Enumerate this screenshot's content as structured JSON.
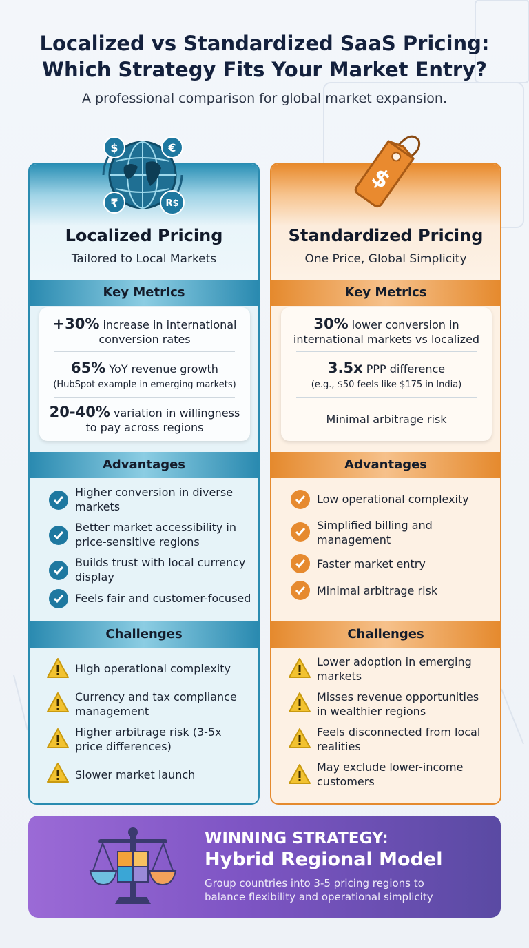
{
  "header": {
    "title_line1": "Localized vs Standardized SaaS Pricing:",
    "title_line2": "Which Strategy Fits Your Market Entry?",
    "subtitle": "A professional comparison for global market expansion."
  },
  "localized": {
    "icon": "globe-currency-icon",
    "currency_symbols": [
      "$",
      "€",
      "₹",
      "R$"
    ],
    "title": "Localized Pricing",
    "subtitle": "Tailored to Local Markets",
    "metrics_heading": "Key Metrics",
    "metrics": [
      {
        "highlight": "+30%",
        "text1": " increase in international",
        "text2": "conversion rates"
      },
      {
        "highlight": "65%",
        "text1": " YoY revenue growth",
        "text2": "(HubSpot example in emerging markets)"
      },
      {
        "highlight": "20-40%",
        "text1": " variation in willingness",
        "text2": "to pay across regions"
      }
    ],
    "advantages_heading": "Advantages",
    "advantages": [
      [
        "Higher conversion in diverse",
        "markets"
      ],
      [
        "Better market accessibility in",
        "price-sensitive regions"
      ],
      [
        "Builds trust with local currency",
        "display"
      ],
      [
        "Feels fair and customer-focused",
        ""
      ]
    ],
    "challenges_heading": "Challenges",
    "challenges": [
      [
        "High operational complexity",
        ""
      ],
      [
        "Currency and tax compliance",
        "management"
      ],
      [
        "Higher arbitrage risk (3-5x",
        "price differences)"
      ],
      [
        "Slower market launch",
        ""
      ]
    ]
  },
  "standardized": {
    "icon": "price-tag-icon",
    "title": "Standardized Pricing",
    "subtitle": "One Price, Global Simplicity",
    "metrics_heading": "Key Metrics",
    "metrics": [
      {
        "highlight": "30%",
        "text1": " lower conversion in",
        "text2": "international markets vs localized"
      },
      {
        "highlight": "3.5x",
        "text1": " PPP difference",
        "text2": "(e.g., $50 feels like $175 in India)"
      },
      {
        "highlight": "",
        "text1": "Minimal arbitrage risk",
        "text2": ""
      }
    ],
    "advantages_heading": "Advantages",
    "advantages": [
      [
        "Low operational complexity",
        ""
      ],
      [
        "Simplified billing and",
        "management"
      ],
      [
        "Faster market entry",
        ""
      ],
      [
        "Minimal arbitrage risk",
        ""
      ]
    ],
    "challenges_heading": "Challenges",
    "challenges": [
      [
        "Lower adoption in emerging",
        "markets"
      ],
      [
        "Misses revenue opportunities",
        "in wealthier regions"
      ],
      [
        "Feels disconnected from local",
        "realities"
      ],
      [
        "May exclude lower-income",
        "customers"
      ]
    ]
  },
  "winning": {
    "icon": "balance-scale-puzzle-icon",
    "kicker": "WINNING STRATEGY:",
    "title": "Hybrid Regional Model",
    "desc_line1": "Group countries into 3-5 pricing regions to",
    "desc_line2": "balance flexibility and operational simplicity"
  },
  "colors": {
    "localized_accent": "#2a8bb0",
    "standardized_accent": "#e58a2e",
    "winning_gradient_start": "#9b6ad6",
    "winning_gradient_end": "#5a4aa3",
    "warning": "#f2c230"
  }
}
